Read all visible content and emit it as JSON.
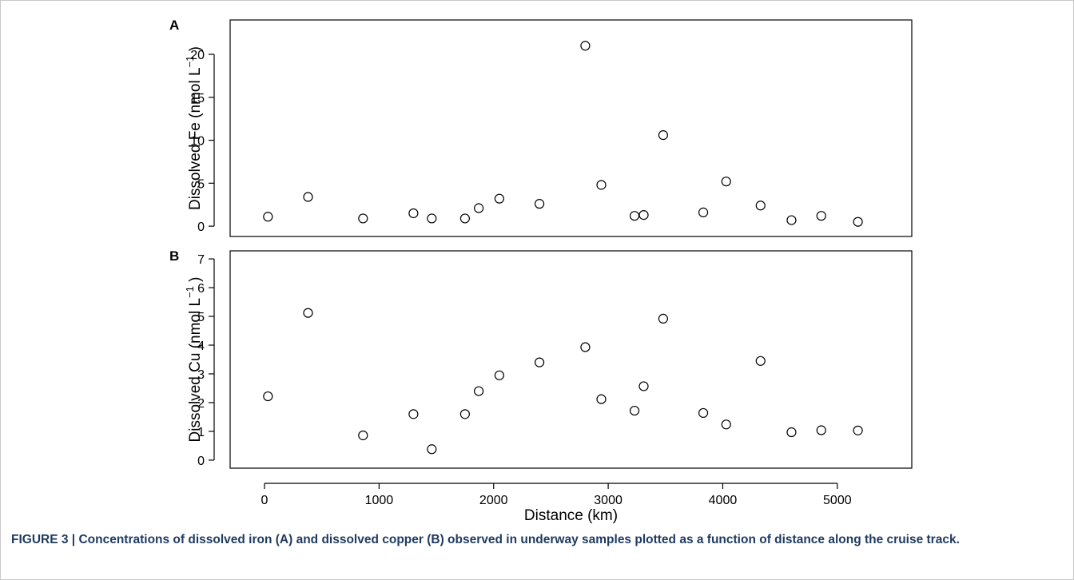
{
  "caption": {
    "label": "FIGURE 3 |",
    "text": "Concentrations of dissolved iron (A) and dissolved copper (B) observed in underway samples plotted as a function of distance along the cruise track."
  },
  "chart_data": [
    {
      "type": "scatter",
      "panel_label": "A",
      "ylabel_main": "Dissolved Fe (nmol L",
      "ylabel_sup": "−1",
      "ylabel_close": " )",
      "xlim": [
        -300,
        5650
      ],
      "ylim": [
        -1.2,
        24
      ],
      "yticks": [
        0,
        5,
        10,
        15,
        20
      ],
      "points": [
        {
          "x": 30,
          "y": 1.1
        },
        {
          "x": 380,
          "y": 3.4
        },
        {
          "x": 860,
          "y": 0.9
        },
        {
          "x": 1300,
          "y": 1.5
        },
        {
          "x": 1460,
          "y": 0.9
        },
        {
          "x": 1750,
          "y": 0.9
        },
        {
          "x": 1870,
          "y": 2.1
        },
        {
          "x": 2050,
          "y": 3.2
        },
        {
          "x": 2400,
          "y": 2.6
        },
        {
          "x": 2800,
          "y": 21.0
        },
        {
          "x": 2940,
          "y": 4.8
        },
        {
          "x": 3230,
          "y": 1.2
        },
        {
          "x": 3310,
          "y": 1.3
        },
        {
          "x": 3480,
          "y": 10.6
        },
        {
          "x": 3830,
          "y": 1.6
        },
        {
          "x": 4030,
          "y": 5.2
        },
        {
          "x": 4330,
          "y": 2.4
        },
        {
          "x": 4600,
          "y": 0.7
        },
        {
          "x": 4860,
          "y": 1.2
        },
        {
          "x": 5180,
          "y": 0.5
        }
      ]
    },
    {
      "type": "scatter",
      "panel_label": "B",
      "ylabel_main": "Dissolved Cu (nmol L",
      "ylabel_sup": "−1",
      "ylabel_close": " )",
      "xlabel": "Distance (km)",
      "xlim": [
        -300,
        5650
      ],
      "ylim": [
        -0.28,
        7.28
      ],
      "yticks": [
        0,
        1,
        2,
        3,
        4,
        5,
        6,
        7
      ],
      "xticks": [
        0,
        1000,
        2000,
        3000,
        4000,
        5000
      ],
      "points": [
        {
          "x": 30,
          "y": 2.22
        },
        {
          "x": 380,
          "y": 5.12
        },
        {
          "x": 860,
          "y": 0.86
        },
        {
          "x": 1300,
          "y": 1.6
        },
        {
          "x": 1460,
          "y": 0.38
        },
        {
          "x": 1750,
          "y": 1.6
        },
        {
          "x": 1870,
          "y": 2.4
        },
        {
          "x": 2050,
          "y": 2.95
        },
        {
          "x": 2400,
          "y": 3.4
        },
        {
          "x": 2800,
          "y": 3.93
        },
        {
          "x": 2940,
          "y": 2.12
        },
        {
          "x": 3230,
          "y": 1.72
        },
        {
          "x": 3310,
          "y": 2.57
        },
        {
          "x": 3480,
          "y": 4.92
        },
        {
          "x": 3830,
          "y": 1.64
        },
        {
          "x": 4030,
          "y": 1.24
        },
        {
          "x": 4330,
          "y": 3.45
        },
        {
          "x": 4600,
          "y": 0.97
        },
        {
          "x": 4860,
          "y": 1.04
        },
        {
          "x": 5180,
          "y": 1.03
        }
      ]
    }
  ]
}
